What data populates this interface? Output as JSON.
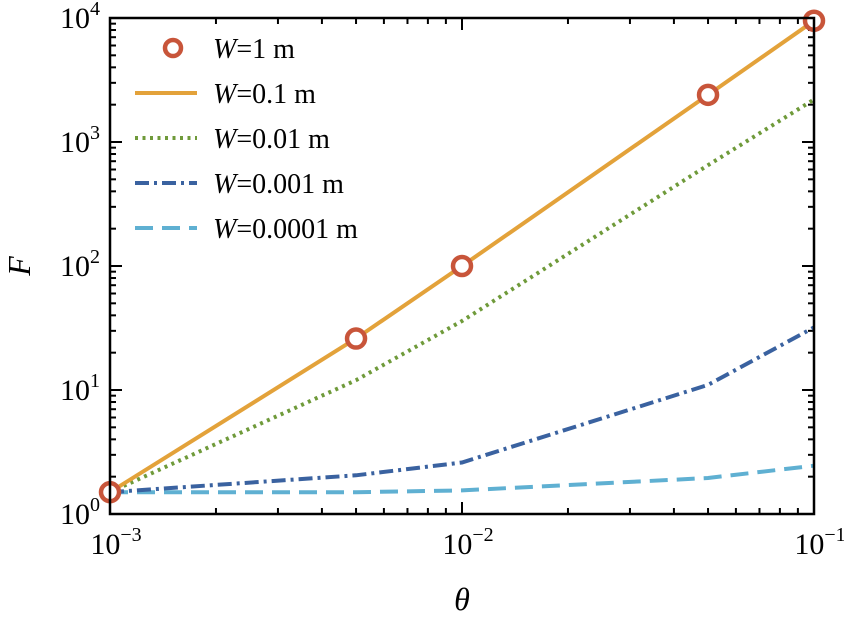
{
  "chart_data": {
    "type": "line",
    "xlabel": "θ",
    "ylabel": "F",
    "xscale": "log",
    "yscale": "log",
    "xlim": [
      0.001,
      0.1
    ],
    "ylim": [
      1,
      10000
    ],
    "x_ticks": [
      {
        "value": 0.001,
        "base": "10",
        "exp": "−3"
      },
      {
        "value": 0.01,
        "base": "10",
        "exp": "−2"
      },
      {
        "value": 0.1,
        "base": "10",
        "exp": "−1"
      }
    ],
    "y_ticks": [
      {
        "value": 1,
        "base": "10",
        "exp": "0"
      },
      {
        "value": 10,
        "base": "10",
        "exp": "1"
      },
      {
        "value": 100,
        "base": "10",
        "exp": "2"
      },
      {
        "value": 1000,
        "base": "10",
        "exp": "3"
      },
      {
        "value": 10000,
        "base": "10",
        "exp": "4"
      }
    ],
    "legend_position": "top-left",
    "series": [
      {
        "name": "W=1 m",
        "name_var": "W",
        "name_rest": "=1 m",
        "style": "circle-markers",
        "color": "#c8553a",
        "x": [
          0.001,
          0.005,
          0.01,
          0.05,
          0.1
        ],
        "y": [
          1.5,
          26,
          100,
          2400,
          9500
        ]
      },
      {
        "name": "W=0.1 m",
        "name_var": "W",
        "name_rest": "=0.1 m",
        "style": "solid",
        "color": "#e3a23a",
        "x": [
          0.001,
          0.005,
          0.01,
          0.05,
          0.1
        ],
        "y": [
          1.5,
          26,
          100,
          2400,
          9500
        ]
      },
      {
        "name": "W=0.01 m",
        "name_var": "W",
        "name_rest": "=0.01 m",
        "style": "dotted",
        "color": "#6f9a3a",
        "x": [
          0.001,
          0.005,
          0.01,
          0.05,
          0.1
        ],
        "y": [
          1.5,
          12,
          36,
          650,
          2200
        ]
      },
      {
        "name": "W=0.001 m",
        "name_var": "W",
        "name_rest": "=0.001 m",
        "style": "dashdot",
        "color": "#3a62a0",
        "x": [
          0.001,
          0.005,
          0.01,
          0.05,
          0.1
        ],
        "y": [
          1.5,
          2.05,
          2.6,
          11,
          32
        ]
      },
      {
        "name": "W=0.0001 m",
        "name_var": "W",
        "name_rest": "=0.0001 m",
        "style": "dashed",
        "color": "#5fb0d2",
        "x": [
          0.001,
          0.005,
          0.01,
          0.05,
          0.1
        ],
        "y": [
          1.5,
          1.5,
          1.55,
          1.95,
          2.45
        ]
      }
    ]
  }
}
